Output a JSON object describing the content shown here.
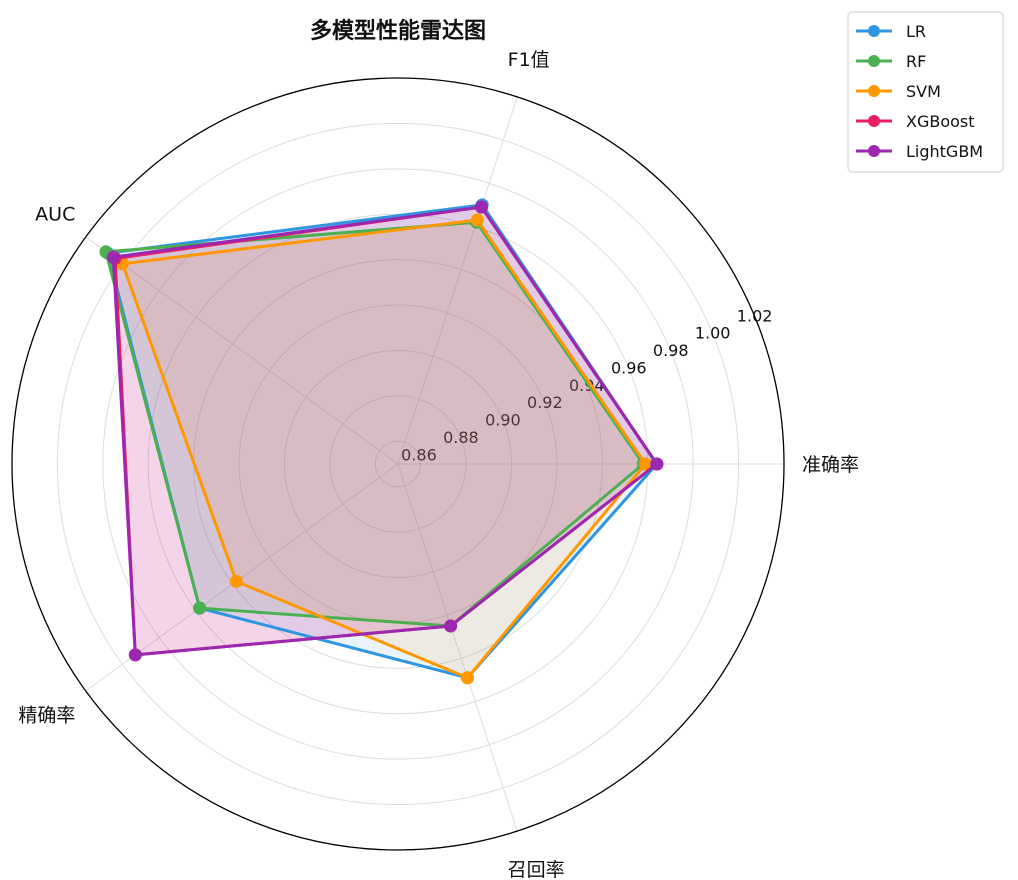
{
  "chart_data": {
    "type": "radar",
    "title": "多模型性能雷达图",
    "axes": [
      "准确率",
      "F1值",
      "AUC",
      "精确率",
      "召回率"
    ],
    "r_range": [
      0.85,
      1.02
    ],
    "r_ticks": [
      "0.86",
      "0.88",
      "0.90",
      "0.92",
      "0.94",
      "0.96",
      "0.98",
      "1.00",
      "1.02"
    ],
    "grid": true,
    "legend_position": "top-right",
    "series": [
      {
        "name": "LR",
        "color": "#2e96e0",
        "values": [
          0.964,
          0.97,
          1.008,
          0.958,
          0.949
        ]
      },
      {
        "name": "RF",
        "color": "#4caf50",
        "values": [
          0.958,
          0.962,
          1.009,
          0.958,
          0.925
        ]
      },
      {
        "name": "SVM",
        "color": "#ff9800",
        "values": [
          0.959,
          0.963,
          1.0,
          0.938,
          0.949
        ]
      },
      {
        "name": "XGBoost",
        "color": "#e91e63",
        "values": [
          0.964,
          0.969,
          1.004,
          0.993,
          0.925
        ]
      },
      {
        "name": "LightGBM",
        "color": "#9c27b0",
        "values": [
          0.964,
          0.969,
          1.005,
          0.993,
          0.925
        ]
      }
    ]
  }
}
